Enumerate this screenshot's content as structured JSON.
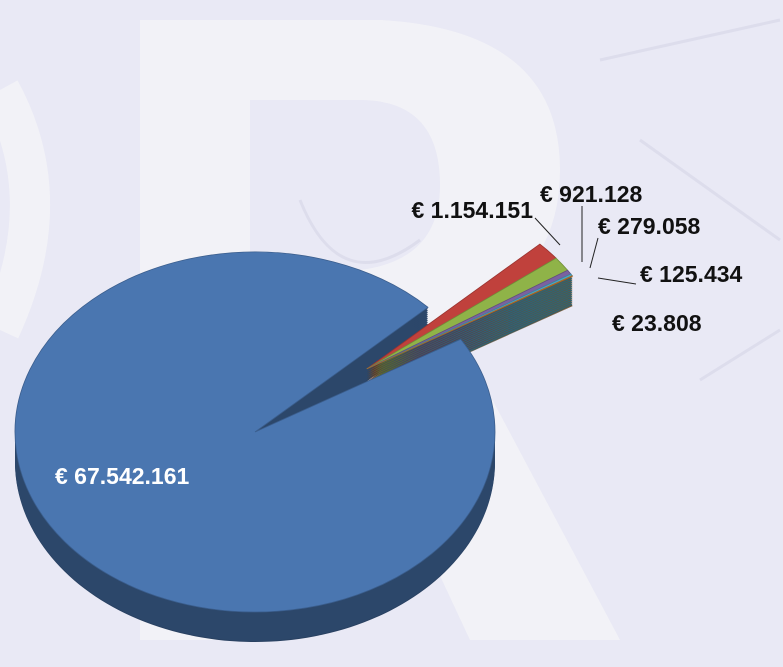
{
  "chart_data": {
    "type": "pie",
    "values": [
      67542161,
      1154151,
      921128,
      279058,
      125434,
      23808
    ],
    "value_labels": [
      "€ 67.542.161",
      "€ 1.154.151",
      "€ 921.128",
      "€ 279.058",
      "€ 125.434",
      "€ 23.808"
    ],
    "colors": [
      "#4a76b0",
      "#c0413c",
      "#8fb348",
      "#7a62a0",
      "#4aa6c6",
      "#d9822b"
    ]
  }
}
